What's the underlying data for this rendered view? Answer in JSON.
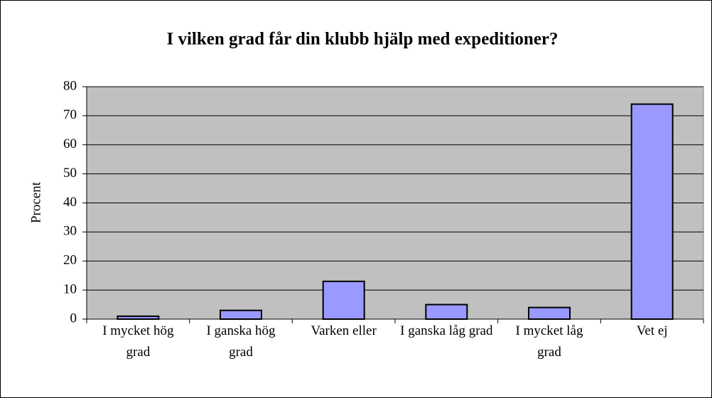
{
  "chart_data": {
    "type": "bar",
    "title": "I vilken grad får din klubb hjälp med expeditioner?",
    "y_label": "Procent",
    "categories": [
      "I mycket hög grad",
      "I ganska hög grad",
      "Varken eller",
      "I ganska låg grad",
      "I mycket låg grad",
      "Vet ej"
    ],
    "values": [
      1,
      3,
      13,
      5,
      4,
      74
    ],
    "color": "#9999ff",
    "ylim": [
      0,
      80
    ],
    "yticks": [
      0,
      10,
      20,
      30,
      40,
      50,
      60,
      70,
      80
    ],
    "grid": true
  }
}
